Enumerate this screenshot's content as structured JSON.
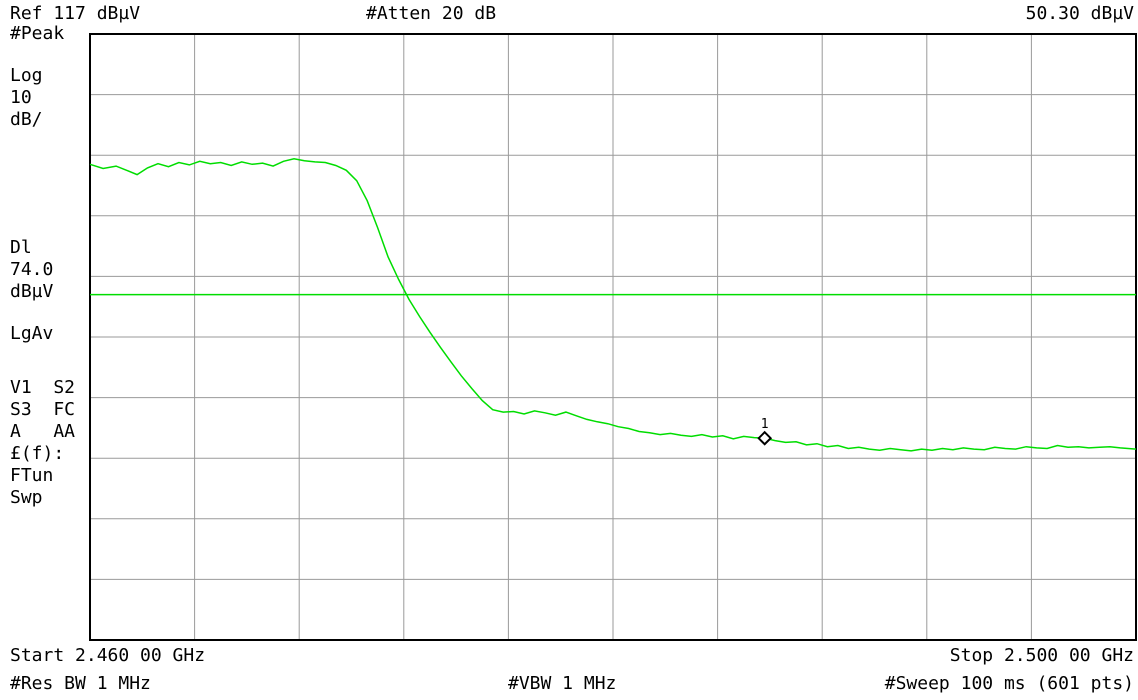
{
  "header": {
    "ref_level": "Ref 117 dBµV",
    "attenuation": "#Atten 20 dB",
    "marker_readout": "50.30 dBµV"
  },
  "left_panel": {
    "detector": "#Peak",
    "scale_type": "Log",
    "scale_value": "10",
    "scale_unit": "dB/",
    "display_line_label": "Dl",
    "display_line_value": "74.0",
    "display_line_unit": "dBµV",
    "average_mode": "LgAv",
    "trace_row_1": "V1  S2",
    "trace_row_2": "S3  FC",
    "trace_row_3": "A   AA",
    "function_label": "£(f):",
    "ftun": "FTun",
    "sweep": "Swp"
  },
  "footer": {
    "start": "Start 2.460 00 GHz",
    "stop": "Stop 2.500 00 GHz",
    "rbw": "#Res BW 1 MHz",
    "vbw": "#VBW 1 MHz",
    "sweep_time": "#Sweep 100 ms (601 pts)"
  },
  "colors": {
    "trace": "#00dd00",
    "display_line": "#00dd00",
    "grid": "#9a9a9a",
    "frame": "#000000"
  },
  "chart_data": {
    "type": "line",
    "xlabel": "",
    "ylabel": "",
    "x_range_ghz": [
      2.46,
      2.5
    ],
    "y_range_dbuv": [
      17,
      117
    ],
    "grid": true,
    "display_line_dbuv": 74.0,
    "marker": {
      "label": "1",
      "x": 2.4858,
      "y": 50.3
    },
    "series": [
      {
        "x": [
          2.46,
          2.4605,
          2.461,
          2.4614,
          2.4618,
          2.4622,
          2.4626,
          2.463,
          2.4634,
          2.4638,
          2.4642,
          2.4646,
          2.465,
          2.4654,
          2.4658,
          2.4662,
          2.4666,
          2.467,
          2.4674,
          2.4678,
          2.4682,
          2.4686,
          2.469,
          2.4694,
          2.4698,
          2.4702,
          2.4706,
          2.471,
          2.4714,
          2.4718,
          2.4722,
          2.4726,
          2.473,
          2.4734,
          2.4738,
          2.4742,
          2.4746,
          2.475,
          2.4754,
          2.4758,
          2.4762,
          2.4766,
          2.477,
          2.4774,
          2.4778,
          2.4782,
          2.4786,
          2.479,
          2.4794,
          2.4798,
          2.4802,
          2.4806,
          2.481,
          2.4814,
          2.4818,
          2.4822,
          2.4826,
          2.483,
          2.4834,
          2.4838,
          2.4842,
          2.4846,
          2.485,
          2.4854,
          2.4858,
          2.4862,
          2.4866,
          2.487,
          2.4874,
          2.4878,
          2.4882,
          2.4886,
          2.489,
          2.4894,
          2.4898,
          2.4902,
          2.4906,
          2.491,
          2.4914,
          2.4918,
          2.4922,
          2.4926,
          2.493,
          2.4934,
          2.4938,
          2.4942,
          2.4946,
          2.495,
          2.4954,
          2.4958,
          2.4962,
          2.4966,
          2.497,
          2.4974,
          2.4978,
          2.4982,
          2.4986,
          2.499,
          2.4994,
          2.5
        ],
        "y": [
          95.5,
          94.8,
          95.2,
          94.5,
          93.8,
          94.9,
          95.6,
          95.1,
          95.8,
          95.4,
          96.0,
          95.6,
          95.8,
          95.3,
          95.9,
          95.5,
          95.7,
          95.2,
          96.0,
          96.4,
          96.1,
          95.9,
          95.8,
          95.3,
          94.5,
          92.8,
          89.5,
          85.0,
          80.2,
          76.5,
          73.2,
          70.4,
          67.8,
          65.3,
          62.9,
          60.6,
          58.5,
          56.5,
          55.0,
          54.6,
          54.7,
          54.3,
          54.8,
          54.5,
          54.1,
          54.6,
          54.0,
          53.4,
          53.0,
          52.7,
          52.2,
          51.9,
          51.4,
          51.2,
          50.9,
          51.1,
          50.8,
          50.6,
          50.9,
          50.5,
          50.7,
          50.2,
          50.6,
          50.4,
          50.3,
          49.9,
          49.6,
          49.7,
          49.2,
          49.4,
          48.9,
          49.1,
          48.6,
          48.8,
          48.5,
          48.3,
          48.6,
          48.4,
          48.2,
          48.5,
          48.3,
          48.6,
          48.4,
          48.7,
          48.5,
          48.4,
          48.8,
          48.6,
          48.5,
          48.9,
          48.7,
          48.6,
          49.1,
          48.8,
          48.9,
          48.7,
          48.8,
          48.9,
          48.7,
          48.5
        ]
      }
    ]
  }
}
